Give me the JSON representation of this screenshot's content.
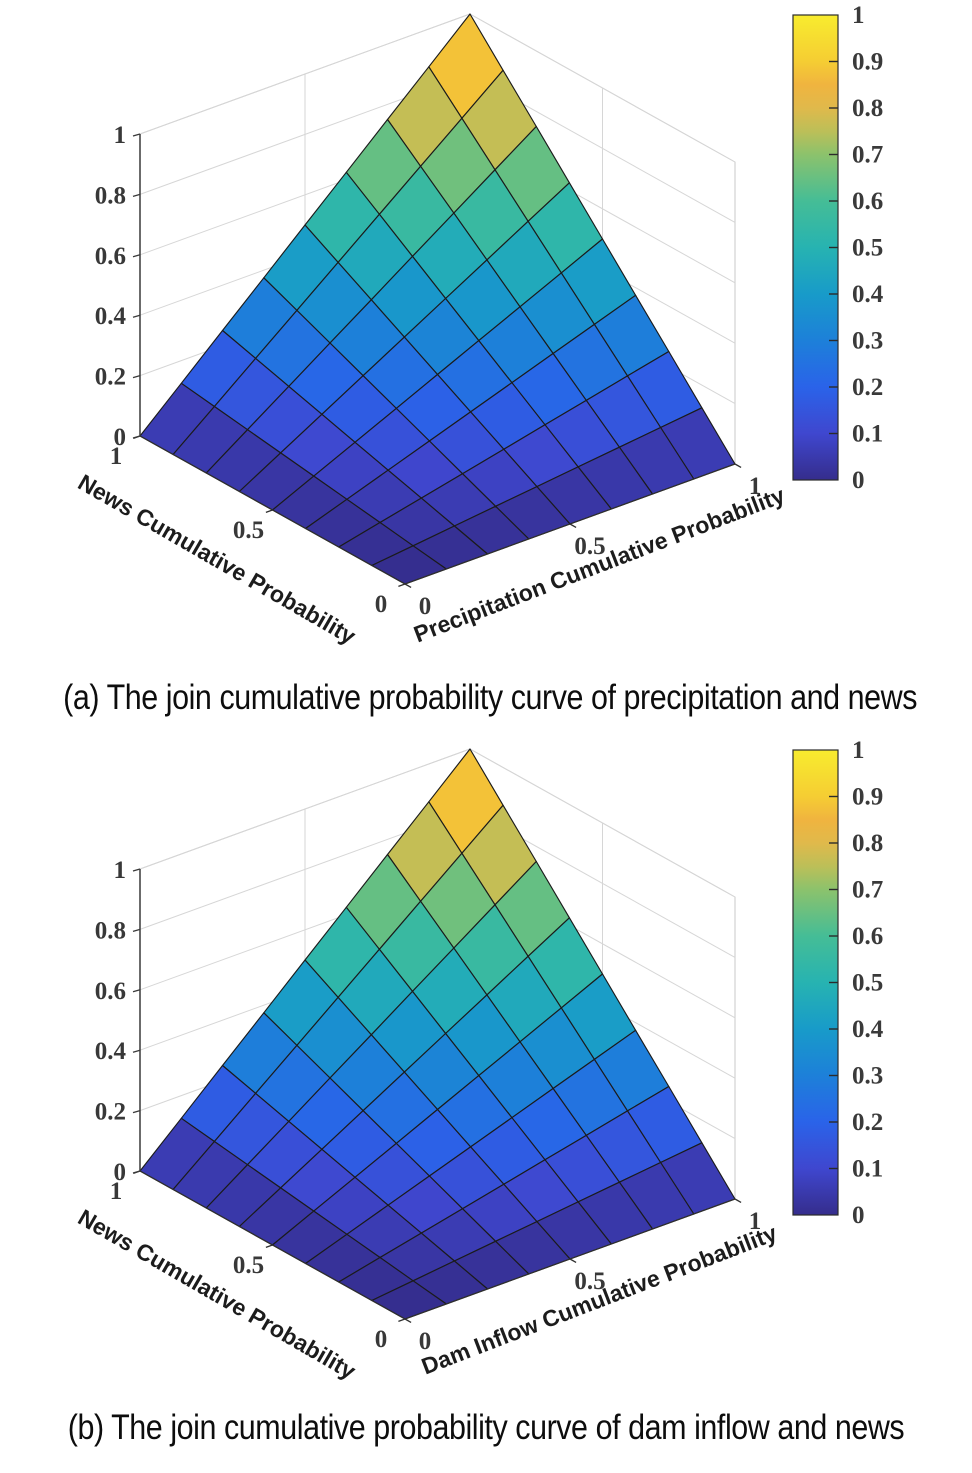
{
  "page": {
    "background": "#ffffff"
  },
  "figures": [
    {
      "id": "a",
      "caption": "(a) The join cumulative probability curve of precipitation and news"
    },
    {
      "id": "b",
      "caption": "(b) The join cumulative probability curve of dam inflow and news"
    }
  ],
  "chart_data": [
    {
      "type": "surface3d",
      "xlabel": "Precipitation Cumulative Probability",
      "ylabel": "News Cumulative Probability",
      "zlabel": "",
      "x": [
        0,
        0.125,
        0.25,
        0.375,
        0.5,
        0.625,
        0.75,
        0.875,
        1
      ],
      "y": [
        0,
        0.125,
        0.25,
        0.375,
        0.5,
        0.625,
        0.75,
        0.875,
        1
      ],
      "z_formula": "z = x * y (joint cumulative probability, independence copula)",
      "z": [
        [
          0,
          0,
          0,
          0,
          0,
          0,
          0,
          0,
          0
        ],
        [
          0,
          0.0156,
          0.0313,
          0.0469,
          0.0625,
          0.0781,
          0.0938,
          0.1094,
          0.125
        ],
        [
          0,
          0.0313,
          0.0625,
          0.0938,
          0.125,
          0.1563,
          0.1875,
          0.2188,
          0.25
        ],
        [
          0,
          0.0469,
          0.0938,
          0.1406,
          0.1875,
          0.2344,
          0.2813,
          0.3281,
          0.375
        ],
        [
          0,
          0.0625,
          0.125,
          0.1875,
          0.25,
          0.3125,
          0.375,
          0.4375,
          0.5
        ],
        [
          0,
          0.0781,
          0.1563,
          0.2344,
          0.3125,
          0.3906,
          0.4688,
          0.5469,
          0.625
        ],
        [
          0,
          0.0938,
          0.1875,
          0.2813,
          0.375,
          0.4688,
          0.5625,
          0.6563,
          0.75
        ],
        [
          0,
          0.1094,
          0.2188,
          0.3281,
          0.4375,
          0.5469,
          0.6563,
          0.7656,
          0.875
        ],
        [
          0,
          0.125,
          0.25,
          0.375,
          0.5,
          0.625,
          0.75,
          0.875,
          1
        ]
      ],
      "xticks": {
        "values": [
          0,
          0.5,
          1
        ],
        "labels": [
          "0",
          "0.5",
          "1"
        ]
      },
      "yticks": {
        "values": [
          0,
          0.5,
          1
        ],
        "labels": [
          "0",
          "0.5",
          "1"
        ]
      },
      "zticks": {
        "values": [
          0,
          0.2,
          0.4,
          0.6,
          0.8,
          1
        ],
        "labels": [
          "0",
          "0.2",
          "0.4",
          "0.6",
          "0.8",
          "1"
        ]
      },
      "xlim": [
        0,
        1
      ],
      "ylim": [
        0,
        1
      ],
      "zlim": [
        0,
        1
      ],
      "grid": true,
      "legend": "none",
      "colorbar": {
        "position": "right",
        "min": 0,
        "max": 1,
        "tick_values": [
          0,
          0.1,
          0.2,
          0.3,
          0.4,
          0.5,
          0.6,
          0.7,
          0.8,
          0.9,
          1
        ],
        "tick_labels": [
          "0",
          "0.1",
          "0.2",
          "0.3",
          "0.4",
          "0.5",
          "0.6",
          "0.7",
          "0.8",
          "0.9",
          "1"
        ]
      },
      "colormap": {
        "name": "parula",
        "stops": [
          {
            "t": 0.0,
            "color": "#352d8c"
          },
          {
            "t": 0.1,
            "color": "#3f47cf"
          },
          {
            "t": 0.2,
            "color": "#2a63e9"
          },
          {
            "t": 0.3,
            "color": "#1d80d9"
          },
          {
            "t": 0.4,
            "color": "#189bc9"
          },
          {
            "t": 0.5,
            "color": "#27b3b1"
          },
          {
            "t": 0.6,
            "color": "#45bd96"
          },
          {
            "t": 0.7,
            "color": "#8cc26c"
          },
          {
            "t": 0.75,
            "color": "#bcbf58"
          },
          {
            "t": 0.8,
            "color": "#e0b94b"
          },
          {
            "t": 0.85,
            "color": "#f0b43f"
          },
          {
            "t": 0.9,
            "color": "#f5cd33"
          },
          {
            "t": 1.0,
            "color": "#f8ec2e"
          }
        ]
      },
      "mesh_line_color": "#1b1b1b",
      "shading": "flat"
    },
    {
      "type": "surface3d",
      "xlabel": "Dam Inflow Cumulative Probability",
      "ylabel": "News Cumulative Probability",
      "zlabel": "",
      "x": [
        0,
        0.125,
        0.25,
        0.375,
        0.5,
        0.625,
        0.75,
        0.875,
        1
      ],
      "y": [
        0,
        0.125,
        0.25,
        0.375,
        0.5,
        0.625,
        0.75,
        0.875,
        1
      ],
      "z_formula": "z = x * y (joint cumulative probability, independence copula)",
      "z": [
        [
          0,
          0,
          0,
          0,
          0,
          0,
          0,
          0,
          0
        ],
        [
          0,
          0.0156,
          0.0313,
          0.0469,
          0.0625,
          0.0781,
          0.0938,
          0.1094,
          0.125
        ],
        [
          0,
          0.0313,
          0.0625,
          0.0938,
          0.125,
          0.1563,
          0.1875,
          0.2188,
          0.25
        ],
        [
          0,
          0.0469,
          0.0938,
          0.1406,
          0.1875,
          0.2344,
          0.2813,
          0.3281,
          0.375
        ],
        [
          0,
          0.0625,
          0.125,
          0.1875,
          0.25,
          0.3125,
          0.375,
          0.4375,
          0.5
        ],
        [
          0,
          0.0781,
          0.1563,
          0.2344,
          0.3125,
          0.3906,
          0.4688,
          0.5469,
          0.625
        ],
        [
          0,
          0.0938,
          0.1875,
          0.2813,
          0.375,
          0.4688,
          0.5625,
          0.6563,
          0.75
        ],
        [
          0,
          0.1094,
          0.2188,
          0.3281,
          0.4375,
          0.5469,
          0.6563,
          0.7656,
          0.875
        ],
        [
          0,
          0.125,
          0.25,
          0.375,
          0.5,
          0.625,
          0.75,
          0.875,
          1
        ]
      ],
      "xticks": {
        "values": [
          0,
          0.5,
          1
        ],
        "labels": [
          "0",
          "0.5",
          "1"
        ]
      },
      "yticks": {
        "values": [
          0,
          0.5,
          1
        ],
        "labels": [
          "0",
          "0.5",
          "1"
        ]
      },
      "zticks": {
        "values": [
          0,
          0.2,
          0.4,
          0.6,
          0.8,
          1
        ],
        "labels": [
          "0",
          "0.2",
          "0.4",
          "0.6",
          "0.8",
          "1"
        ]
      },
      "xlim": [
        0,
        1
      ],
      "ylim": [
        0,
        1
      ],
      "zlim": [
        0,
        1
      ],
      "grid": true,
      "legend": "none",
      "colorbar": {
        "position": "right",
        "min": 0,
        "max": 1,
        "tick_values": [
          0,
          0.1,
          0.2,
          0.3,
          0.4,
          0.5,
          0.6,
          0.7,
          0.8,
          0.9,
          1
        ],
        "tick_labels": [
          "0",
          "0.1",
          "0.2",
          "0.3",
          "0.4",
          "0.5",
          "0.6",
          "0.7",
          "0.8",
          "0.9",
          "1"
        ]
      },
      "colormap": {
        "name": "parula",
        "stops": [
          {
            "t": 0.0,
            "color": "#352d8c"
          },
          {
            "t": 0.1,
            "color": "#3f47cf"
          },
          {
            "t": 0.2,
            "color": "#2a63e9"
          },
          {
            "t": 0.3,
            "color": "#1d80d9"
          },
          {
            "t": 0.4,
            "color": "#189bc9"
          },
          {
            "t": 0.5,
            "color": "#27b3b1"
          },
          {
            "t": 0.6,
            "color": "#45bd96"
          },
          {
            "t": 0.7,
            "color": "#8cc26c"
          },
          {
            "t": 0.75,
            "color": "#bcbf58"
          },
          {
            "t": 0.8,
            "color": "#e0b94b"
          },
          {
            "t": 0.85,
            "color": "#f0b43f"
          },
          {
            "t": 0.9,
            "color": "#f5cd33"
          },
          {
            "t": 1.0,
            "color": "#f8ec2e"
          }
        ]
      },
      "mesh_line_color": "#1b1b1b",
      "shading": "flat"
    }
  ]
}
